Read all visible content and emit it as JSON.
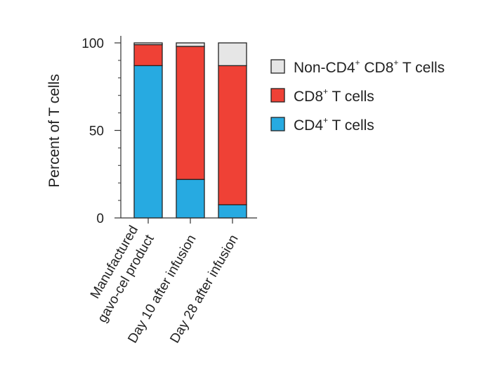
{
  "chart_data": {
    "type": "bar",
    "stacked": true,
    "title": "",
    "xlabel": "",
    "ylabel": "Percent of T cells",
    "ylim": [
      0,
      100
    ],
    "yticks": [
      "0",
      "50",
      "100"
    ],
    "categories": [
      [
        "Manufactured",
        "gavo-cel product"
      ],
      [
        "Day 10 after infusion"
      ],
      [
        "Day 28 after infusion"
      ]
    ],
    "series": [
      {
        "name": "CD4+ T cells",
        "legend_base": "CD4",
        "legend_sup": "+",
        "legend_rest": " T cells",
        "color": "#27aae1",
        "values": [
          87,
          22,
          7.5
        ]
      },
      {
        "name": "CD8+ T cells",
        "legend_base": "CD8",
        "legend_sup": "+",
        "legend_rest": " T cells",
        "color": "#ef4136",
        "values": [
          12,
          76,
          79.5
        ]
      },
      {
        "name": "Non-CD4+ CD8+ T cells",
        "legend_parts": [
          "Non-CD4",
          "+",
          " CD8",
          "+",
          " T cells"
        ],
        "color": "#e6e6e6",
        "values": [
          1,
          2,
          13
        ]
      }
    ],
    "legend_order": [
      2,
      1,
      0
    ],
    "legend_position": "right"
  }
}
